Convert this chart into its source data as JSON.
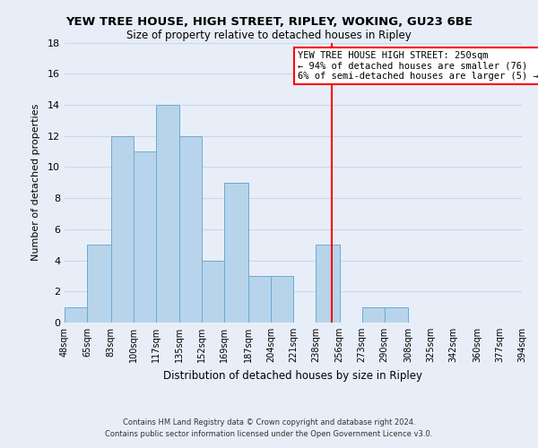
{
  "title": "YEW TREE HOUSE, HIGH STREET, RIPLEY, WOKING, GU23 6BE",
  "subtitle": "Size of property relative to detached houses in Ripley",
  "xlabel": "Distribution of detached houses by size in Ripley",
  "ylabel": "Number of detached properties",
  "bin_edges": [
    48,
    65,
    83,
    100,
    117,
    135,
    152,
    169,
    187,
    204,
    221,
    238,
    256,
    273,
    290,
    308,
    325,
    342,
    360,
    377,
    394
  ],
  "bar_heights": [
    1,
    5,
    12,
    11,
    14,
    12,
    4,
    9,
    3,
    3,
    0,
    5,
    0,
    1,
    1,
    0,
    0,
    0,
    0,
    0
  ],
  "bar_color": "#b8d4ea",
  "bar_edge_color": "#6aaad4",
  "grid_color": "#c8d8ec",
  "reference_line_x": 250,
  "reference_line_color": "red",
  "annotation_title": "YEW TREE HOUSE HIGH STREET: 250sqm",
  "annotation_line1": "← 94% of detached houses are smaller (76)",
  "annotation_line2": "6% of semi-detached houses are larger (5) →",
  "ylim": [
    0,
    18
  ],
  "yticks": [
    0,
    2,
    4,
    6,
    8,
    10,
    12,
    14,
    16,
    18
  ],
  "footer_line1": "Contains HM Land Registry data © Crown copyright and database right 2024.",
  "footer_line2": "Contains public sector information licensed under the Open Government Licence v3.0.",
  "bg_color": "#e8eef8"
}
